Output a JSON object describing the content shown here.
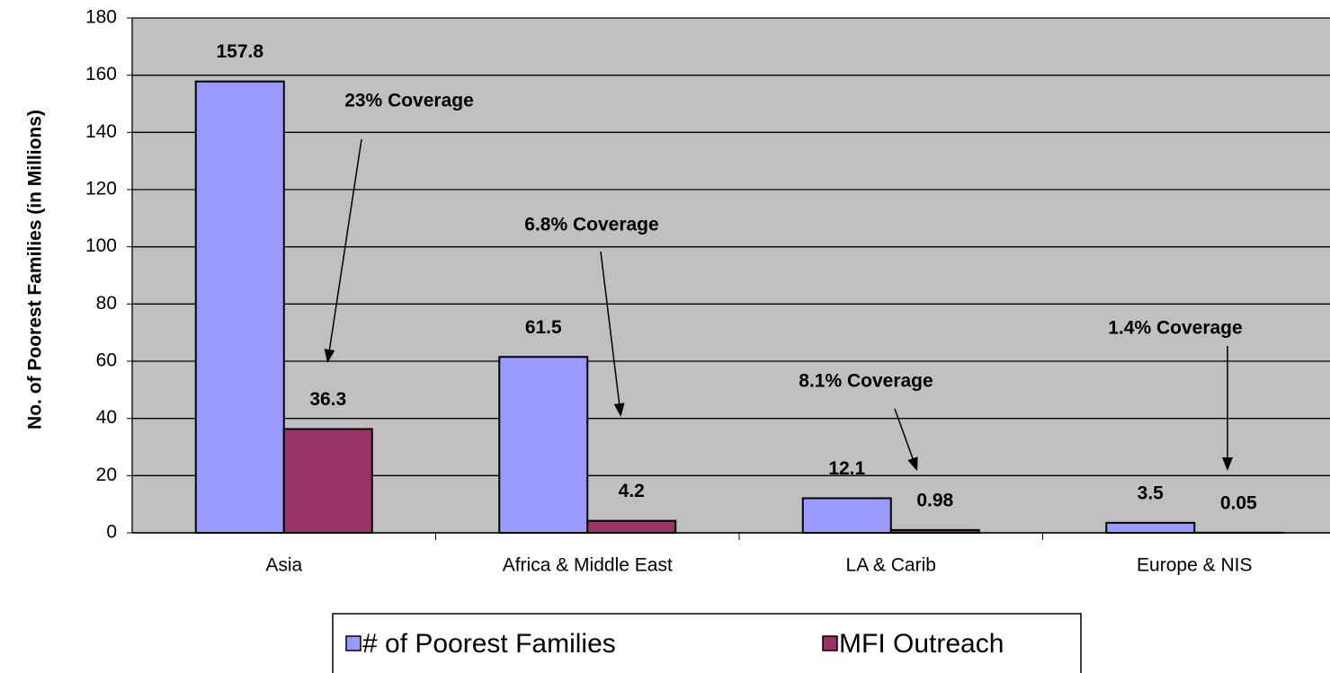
{
  "chart_data": {
    "type": "bar",
    "y_label": "No. of Poorest Families  (in Millions)",
    "categories": [
      "Asia",
      "Africa & Middle East",
      "LA & Carib",
      "Europe & NIS"
    ],
    "series": [
      {
        "name": "# of Poorest Families",
        "color": "#9999ff",
        "values": [
          157.8,
          61.5,
          12.1,
          3.5
        ]
      },
      {
        "name": "MFI Outreach",
        "color": "#993366",
        "values": [
          36.3,
          4.2,
          0.98,
          0.05
        ]
      }
    ],
    "annotations": [
      "23% Coverage",
      "6.8% Coverage",
      "8.1% Coverage",
      "1.4% Coverage"
    ],
    "ylim": [
      0,
      180
    ],
    "yticks": [
      0,
      20,
      40,
      60,
      80,
      100,
      120,
      140,
      160,
      180
    ],
    "grid": true,
    "legend": "bottom"
  }
}
